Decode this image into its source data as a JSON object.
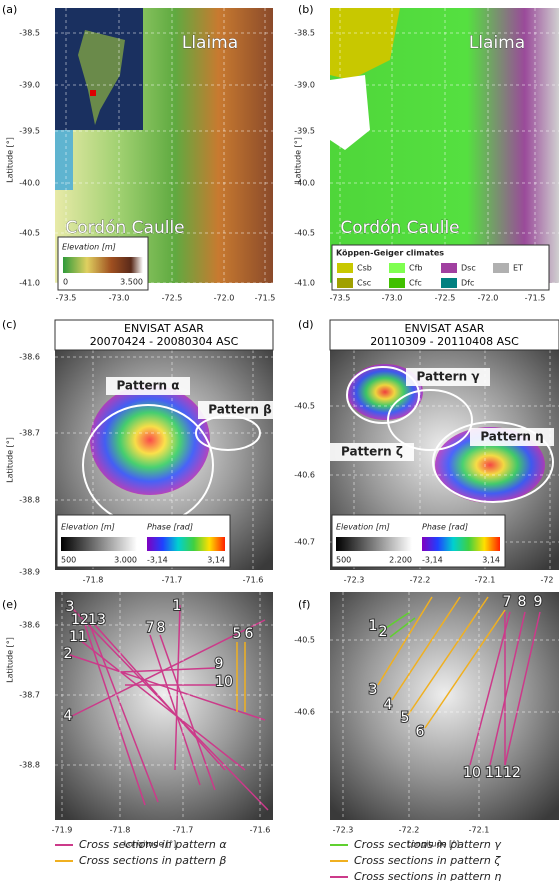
{
  "panels": [
    {
      "label": "(a)",
      "y_axis_label": "Latitude [°]",
      "y_ticks": [
        "-38.5",
        "-39.0",
        "-39.5",
        "-40.0",
        "-40.5",
        "-41.0"
      ],
      "x_ticks": [
        "-73.5",
        "-73.0",
        "-72.5",
        "-72.0",
        "-71.5"
      ],
      "annotations": [
        "Llaima",
        "Cordón Caulle"
      ],
      "legend": {
        "title": "Elevation [m]",
        "min": "0",
        "max": "3.500"
      }
    },
    {
      "label": "(b)",
      "y_axis_label": "Latitude [°]",
      "y_ticks": [
        "-38.5",
        "-39.0",
        "-39.5",
        "-40.0",
        "-40.5",
        "-41.0"
      ],
      "x_ticks": [
        "-73.5",
        "-73.0",
        "-72.5",
        "-72.0",
        "-71.5"
      ],
      "annotations": [
        "Llaima",
        "Cordón Caulle"
      ],
      "legend": {
        "title": "Köppen-Geiger climates",
        "classes": [
          "Csb",
          "Cfb",
          "Dsc",
          "ET",
          "Csc",
          "Cfc",
          "Dfc"
        ]
      }
    },
    {
      "label": "(c)",
      "title": [
        "ENVISAT ASAR",
        "20070424 - 20080304 ASC"
      ],
      "y_axis_label": "Latitude [°]",
      "y_ticks": [
        "-38.6",
        "-38.7",
        "-38.8",
        "-38.9"
      ],
      "x_ticks": [
        "-71.8",
        "-71.7",
        "-71.6"
      ],
      "annotations": [
        "Pattern α",
        "Pattern β"
      ],
      "legend": {
        "elevation_title": "Elevation [m]",
        "phase_title": "Phase [rad]",
        "elevation_min": "500",
        "elevation_max": "3.000",
        "phase_min": "-3,14",
        "phase_max": "3,14"
      }
    },
    {
      "label": "(d)",
      "title": [
        "ENVISAT ASAR",
        "20110309 - 20110408 ASC"
      ],
      "y_ticks": [
        "-40.5",
        "-40.6",
        "-40.7"
      ],
      "x_ticks": [
        "-72.3",
        "-72.2",
        "-72.1",
        "-72"
      ],
      "annotations": [
        "Pattern γ",
        "Pattern ζ",
        "Pattern η"
      ],
      "legend": {
        "elevation_title": "Elevation [m]",
        "phase_title": "Phase [rad]",
        "elevation_min": "500",
        "elevation_max": "2.200",
        "phase_min": "-3,14",
        "phase_max": "3,14"
      }
    },
    {
      "label": "(e)",
      "y_axis_label": "Latitude [°]",
      "x_axis_label": "Longitude [°]",
      "y_ticks": [
        "-38.6",
        "-38.7",
        "-38.8"
      ],
      "x_ticks": [
        "-71.9",
        "-71.8",
        "-71.7",
        "-71.6"
      ],
      "section_labels": [
        "1",
        "2",
        "3",
        "4",
        "5",
        "6",
        "7",
        "8",
        "9",
        "10",
        "11",
        "12",
        "13"
      ]
    },
    {
      "label": "(f)",
      "x_axis_label": "Longitude [°]",
      "y_ticks": [
        "-40.5",
        "-40.6"
      ],
      "x_ticks": [
        "-72.3",
        "-72.2",
        "-72.1"
      ],
      "section_labels": [
        "1",
        "2",
        "3",
        "4",
        "5",
        "6",
        "7",
        "8",
        "9",
        "10",
        "11",
        "12"
      ]
    }
  ],
  "legend": {
    "left": [
      "Cross sections in pattern α",
      "Cross sections in pattern β"
    ],
    "right": [
      "Cross sections in pattern γ",
      "Cross sections in pattern ζ",
      "Cross sections in pattern η"
    ]
  }
}
